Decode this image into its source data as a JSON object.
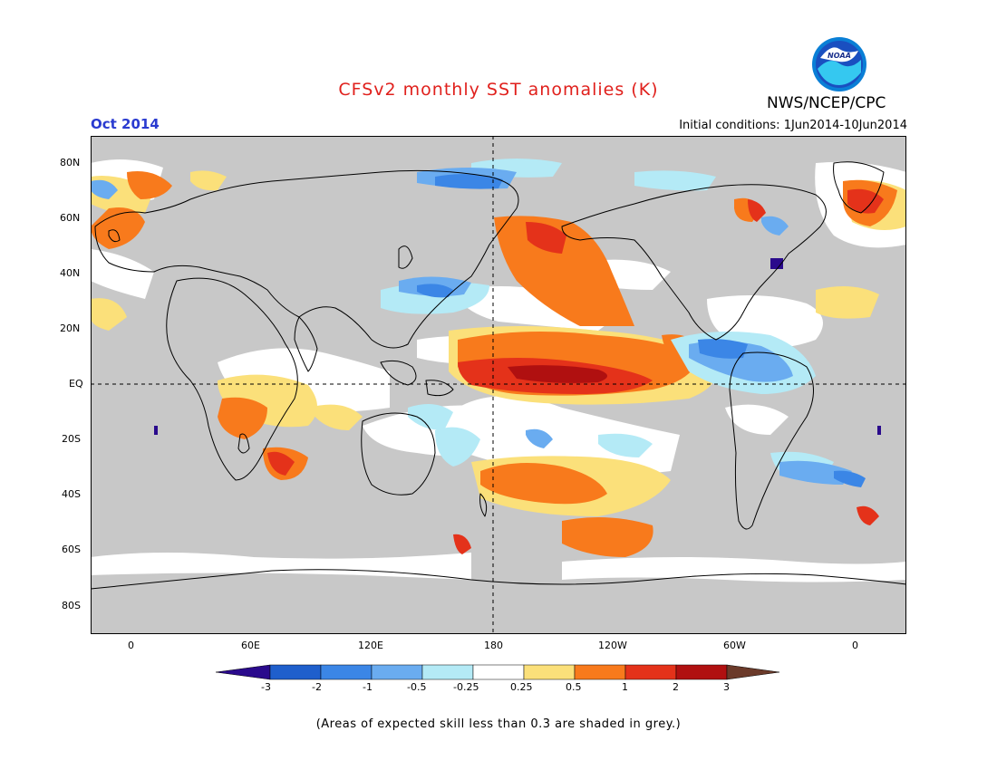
{
  "title": "CFSv2 monthly SST anomalies (K)",
  "agency": "NWS/NCEP/CPC",
  "logo_text": "NOAA",
  "target_month": "Oct 2014",
  "initial_conditions": "Initial conditions: 1Jun2014-10Jun2014",
  "note": "(Areas of expected skill less than 0.3 are shaded in grey.)",
  "colors": {
    "land_bg": "#c8c8c8",
    "zero_band": "#ffffff",
    "c_lt_-3": "#2a0a8c",
    "c_-3_-2": "#1f5fcc",
    "c_-2_-1": "#3b86e6",
    "c_-1_-0.5": "#6aacf0",
    "c_-0.5_-0.25": "#b4eaf6",
    "c_-0.25_0.25": "#ffffff",
    "c_0.25_0.5": "#fbe07a",
    "c_0.5_1": "#f87a1c",
    "c_1_2": "#e4321a",
    "c_2_3": "#b01010",
    "c_gt_3": "#6b3a2a"
  },
  "map": {
    "lat_labels": [
      "80N",
      "60N",
      "40N",
      "20N",
      "EQ",
      "20S",
      "40S",
      "60S",
      "80S"
    ],
    "lon_labels": [
      "0",
      "60E",
      "120E",
      "180",
      "120W",
      "60W",
      "0"
    ]
  },
  "colorbar": {
    "labels": [
      "-3",
      "-2",
      "-1",
      "-0.5",
      "-0.25",
      "0.25",
      "0.5",
      "1",
      "2",
      "3"
    ]
  },
  "chart_data": {
    "type": "heatmap",
    "title": "CFSv2 monthly SST anomalies (K)",
    "variable": "sea surface temperature anomaly",
    "units": "K",
    "valid_period": "Oct 2014",
    "initial_conditions": "1Jun2014-10Jun2014",
    "color_levels": [
      -3,
      -2,
      -1,
      -0.5,
      -0.25,
      0.25,
      0.5,
      1,
      2,
      3
    ],
    "lat_range": [
      -90,
      90
    ],
    "lon_range": [
      -20,
      380
    ],
    "masked_value_meaning": "grey = expected skill less than 0.3",
    "features": [
      {
        "region": "Central/eastern equatorial Pacific",
        "anomaly": "+1 to +2"
      },
      {
        "region": "Northeast Pacific",
        "anomaly": "+0.5 to +1"
      },
      {
        "region": "South-central Pacific 30S-60S",
        "anomaly": "+0.5 to +1"
      },
      {
        "region": "Tropical North Atlantic",
        "anomaly": "-0.5 to -1"
      },
      {
        "region": "Western Indian Ocean",
        "anomaly": "+0.25 to +1"
      },
      {
        "region": "Northwest Pacific ~30N",
        "anomaly": "-0.25 to -1"
      }
    ]
  }
}
